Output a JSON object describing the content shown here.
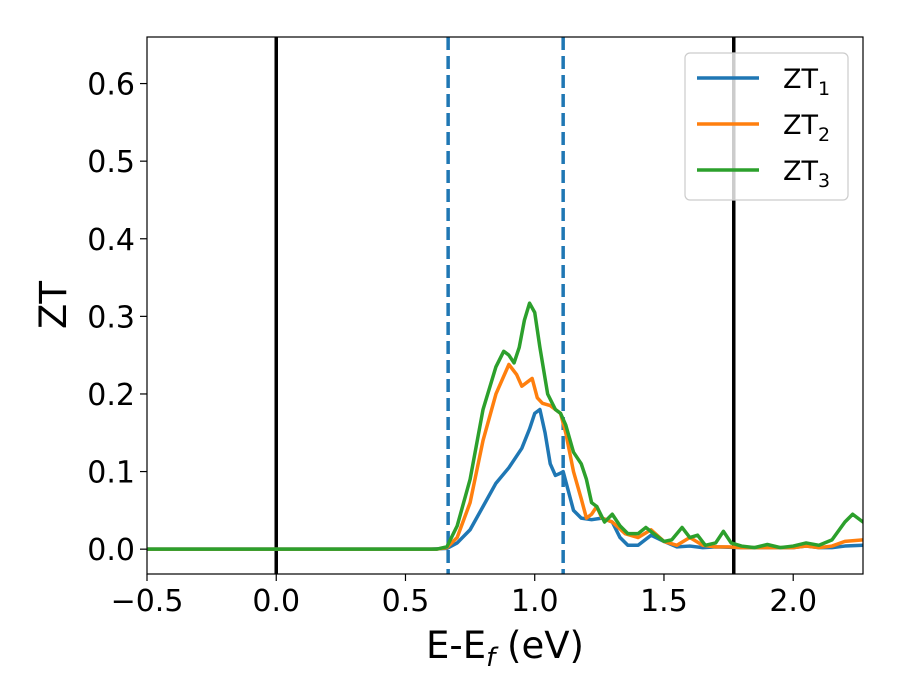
{
  "chart_data": {
    "type": "line",
    "xlabel": "E-E",
    "xlabel_sub": "f",
    "xlabel_unit": "(eV)",
    "ylabel": "ZT",
    "xlim": [
      -0.5,
      2.27
    ],
    "ylim": [
      -0.032,
      0.66
    ],
    "xticks": [
      {
        "value": -0.5,
        "label": "−0.5"
      },
      {
        "value": 0.0,
        "label": "0.0"
      },
      {
        "value": 0.5,
        "label": "0.5"
      },
      {
        "value": 1.0,
        "label": "1.0"
      },
      {
        "value": 1.5,
        "label": "1.5"
      },
      {
        "value": 2.0,
        "label": "2.0"
      }
    ],
    "yticks": [
      {
        "value": 0.0,
        "label": "0.0"
      },
      {
        "value": 0.1,
        "label": "0.1"
      },
      {
        "value": 0.2,
        "label": "0.2"
      },
      {
        "value": 0.3,
        "label": "0.3"
      },
      {
        "value": 0.4,
        "label": "0.4"
      },
      {
        "value": 0.5,
        "label": "0.5"
      },
      {
        "value": 0.6,
        "label": "0.6"
      }
    ],
    "grid": false,
    "legend_position": "top-right",
    "vlines": [
      {
        "x": 0.0,
        "style": "solid",
        "color": "#000000"
      },
      {
        "x": 1.77,
        "style": "solid",
        "color": "#000000"
      },
      {
        "x": 0.665,
        "style": "dashed",
        "color": "#1f77b4"
      },
      {
        "x": 1.11,
        "style": "dashed",
        "color": "#1f77b4"
      }
    ],
    "series": [
      {
        "name": "ZT",
        "subscript": "1",
        "color": "#1f77b4",
        "points": [
          [
            -0.5,
            0
          ],
          [
            0.6,
            0
          ],
          [
            0.66,
            0.001
          ],
          [
            0.7,
            0.008
          ],
          [
            0.75,
            0.025
          ],
          [
            0.8,
            0.055
          ],
          [
            0.85,
            0.085
          ],
          [
            0.9,
            0.105
          ],
          [
            0.95,
            0.13
          ],
          [
            0.98,
            0.155
          ],
          [
            1.0,
            0.175
          ],
          [
            1.02,
            0.18
          ],
          [
            1.04,
            0.15
          ],
          [
            1.06,
            0.11
          ],
          [
            1.08,
            0.095
          ],
          [
            1.1,
            0.098
          ],
          [
            1.11,
            0.1
          ],
          [
            1.13,
            0.075
          ],
          [
            1.15,
            0.05
          ],
          [
            1.18,
            0.04
          ],
          [
            1.22,
            0.038
          ],
          [
            1.26,
            0.04
          ],
          [
            1.3,
            0.035
          ],
          [
            1.33,
            0.015
          ],
          [
            1.36,
            0.005
          ],
          [
            1.4,
            0.005
          ],
          [
            1.45,
            0.018
          ],
          [
            1.5,
            0.01
          ],
          [
            1.55,
            0.003
          ],
          [
            1.6,
            0.004
          ],
          [
            1.65,
            0.002
          ],
          [
            1.7,
            0.003
          ],
          [
            1.8,
            0.002
          ],
          [
            1.9,
            0.002
          ],
          [
            2.0,
            0.002
          ],
          [
            2.05,
            0.004
          ],
          [
            2.1,
            0.002
          ],
          [
            2.15,
            0.002
          ],
          [
            2.2,
            0.004
          ],
          [
            2.27,
            0.005
          ]
        ]
      },
      {
        "name": "ZT",
        "subscript": "2",
        "color": "#ff7f0e",
        "points": [
          [
            -0.5,
            0
          ],
          [
            0.62,
            0
          ],
          [
            0.66,
            0.002
          ],
          [
            0.7,
            0.015
          ],
          [
            0.75,
            0.06
          ],
          [
            0.8,
            0.14
          ],
          [
            0.85,
            0.2
          ],
          [
            0.9,
            0.238
          ],
          [
            0.93,
            0.225
          ],
          [
            0.95,
            0.21
          ],
          [
            0.97,
            0.215
          ],
          [
            0.99,
            0.22
          ],
          [
            1.01,
            0.195
          ],
          [
            1.03,
            0.188
          ],
          [
            1.06,
            0.185
          ],
          [
            1.1,
            0.175
          ],
          [
            1.12,
            0.15
          ],
          [
            1.15,
            0.1
          ],
          [
            1.18,
            0.065
          ],
          [
            1.2,
            0.04
          ],
          [
            1.22,
            0.045
          ],
          [
            1.24,
            0.055
          ],
          [
            1.26,
            0.04
          ],
          [
            1.3,
            0.035
          ],
          [
            1.35,
            0.02
          ],
          [
            1.4,
            0.015
          ],
          [
            1.45,
            0.025
          ],
          [
            1.5,
            0.01
          ],
          [
            1.55,
            0.005
          ],
          [
            1.6,
            0.015
          ],
          [
            1.65,
            0.005
          ],
          [
            1.7,
            0.003
          ],
          [
            1.75,
            0.003
          ],
          [
            1.8,
            0.002
          ],
          [
            1.9,
            0.002
          ],
          [
            2.0,
            0.002
          ],
          [
            2.05,
            0.004
          ],
          [
            2.1,
            0.002
          ],
          [
            2.15,
            0.004
          ],
          [
            2.2,
            0.01
          ],
          [
            2.27,
            0.012
          ]
        ]
      },
      {
        "name": "ZT",
        "subscript": "3",
        "color": "#2ca02c",
        "points": [
          [
            -0.5,
            0
          ],
          [
            0.62,
            0
          ],
          [
            0.66,
            0.003
          ],
          [
            0.7,
            0.03
          ],
          [
            0.75,
            0.09
          ],
          [
            0.8,
            0.18
          ],
          [
            0.85,
            0.235
          ],
          [
            0.88,
            0.255
          ],
          [
            0.9,
            0.25
          ],
          [
            0.92,
            0.24
          ],
          [
            0.94,
            0.26
          ],
          [
            0.96,
            0.295
          ],
          [
            0.98,
            0.317
          ],
          [
            1.0,
            0.305
          ],
          [
            1.02,
            0.26
          ],
          [
            1.05,
            0.2
          ],
          [
            1.08,
            0.18
          ],
          [
            1.1,
            0.175
          ],
          [
            1.12,
            0.16
          ],
          [
            1.15,
            0.125
          ],
          [
            1.18,
            0.11
          ],
          [
            1.2,
            0.09
          ],
          [
            1.22,
            0.06
          ],
          [
            1.24,
            0.055
          ],
          [
            1.27,
            0.035
          ],
          [
            1.3,
            0.045
          ],
          [
            1.33,
            0.03
          ],
          [
            1.36,
            0.02
          ],
          [
            1.4,
            0.02
          ],
          [
            1.43,
            0.028
          ],
          [
            1.46,
            0.02
          ],
          [
            1.5,
            0.01
          ],
          [
            1.53,
            0.012
          ],
          [
            1.57,
            0.028
          ],
          [
            1.6,
            0.015
          ],
          [
            1.63,
            0.018
          ],
          [
            1.66,
            0.005
          ],
          [
            1.7,
            0.008
          ],
          [
            1.73,
            0.023
          ],
          [
            1.76,
            0.008
          ],
          [
            1.8,
            0.004
          ],
          [
            1.85,
            0.002
          ],
          [
            1.9,
            0.006
          ],
          [
            1.95,
            0.002
          ],
          [
            2.0,
            0.004
          ],
          [
            2.05,
            0.008
          ],
          [
            2.1,
            0.005
          ],
          [
            2.15,
            0.012
          ],
          [
            2.2,
            0.035
          ],
          [
            2.23,
            0.045
          ],
          [
            2.27,
            0.035
          ]
        ]
      }
    ]
  }
}
